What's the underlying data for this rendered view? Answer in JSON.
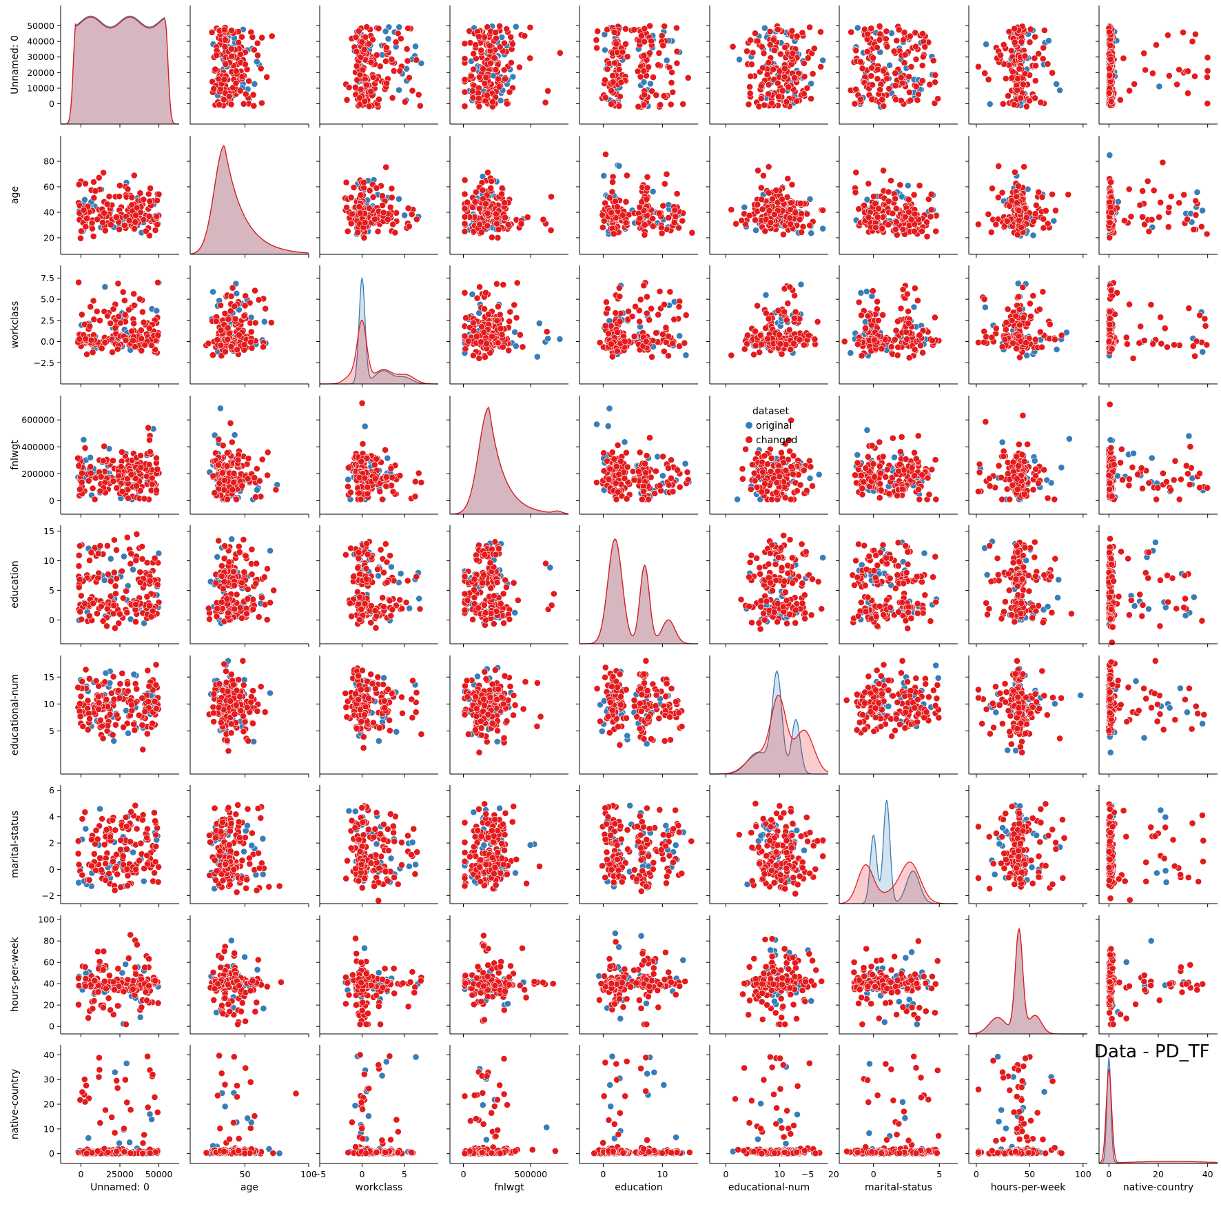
{
  "chart_data": {
    "type": "scatter",
    "variables": [
      "Unnamed: 0",
      "age",
      "workclass",
      "fnlwgt",
      "education",
      "educational-num",
      "marital-status",
      "hours-per-week",
      "native-country"
    ],
    "ranges": {
      "Unnamed: 0": [
        -13000,
        63000
      ],
      "age": [
        7,
        100
      ],
      "workclass": [
        -5,
        9
      ],
      "fnlwgt": [
        -100000,
        780000
      ],
      "education": [
        -4,
        16
      ],
      "educational-num": [
        -3,
        19
      ],
      "marital-status": [
        -2.6,
        6.4
      ],
      "hours-per-week": [
        -7,
        104
      ],
      "native-country": [
        -4,
        44
      ]
    },
    "ticks": {
      "Unnamed: 0": [
        0,
        25000,
        50000
      ],
      "age": [
        50,
        100
      ],
      "workclass": [
        -5,
        0,
        5
      ],
      "fnlwgt": [
        0,
        500000
      ],
      "education": [
        0,
        10
      ],
      "educational-num": [
        0,
        10,
        20
      ],
      "marital-status": [
        -5,
        0,
        5
      ],
      "hours-per-week": [
        0,
        50,
        100
      ],
      "native-country": [
        0,
        20,
        40
      ]
    },
    "y_ticks": {
      "Unnamed: 0": [
        0,
        10000,
        20000,
        30000,
        40000,
        50000
      ],
      "age": [
        20,
        40,
        60,
        80
      ],
      "workclass": [
        -2.5,
        0.0,
        2.5,
        5.0,
        7.5
      ],
      "fnlwgt": [
        0,
        200000,
        400000,
        600000
      ],
      "education": [
        0,
        5,
        10,
        15
      ],
      "educational-num": [
        5,
        10,
        15
      ],
      "marital-status": [
        -2,
        0,
        2,
        4,
        6
      ],
      "hours-per-week": [
        0,
        20,
        40,
        60,
        80,
        100
      ],
      "native-country": [
        0,
        10,
        20,
        30,
        40
      ]
    },
    "tick_labels": {
      "Unnamed: 0": [
        "0",
        "25000",
        "50000"
      ],
      "age": [
        "50",
        "100"
      ],
      "workclass": [
        "−5",
        "0",
        "5"
      ],
      "fnlwgt": [
        "0",
        "500000"
      ],
      "education": [
        "0",
        "10"
      ],
      "educational-num": [
        "0",
        "10",
        "20"
      ],
      "marital-status": [
        "−5",
        "0",
        "5"
      ],
      "hours-per-week": [
        "0",
        "50",
        "100"
      ],
      "native-country": [
        "0",
        "20",
        "40"
      ]
    },
    "y_tick_labels": {
      "Unnamed: 0": [
        "0",
        "10000",
        "20000",
        "30000",
        "40000",
        "50000"
      ],
      "age": [
        "20",
        "40",
        "60",
        "80"
      ],
      "workclass": [
        "−2.5",
        "0.0",
        "2.5",
        "5.0",
        "7.5"
      ],
      "fnlwgt": [
        "0",
        "200000",
        "400000",
        "600000"
      ],
      "education": [
        "0",
        "5",
        "10",
        "15"
      ],
      "educational-num": [
        "5",
        "10",
        "15"
      ],
      "marital-status": [
        "−2",
        "0",
        "2",
        "4",
        "6"
      ],
      "hours-per-week": [
        "0",
        "20",
        "40",
        "60",
        "80",
        "100"
      ],
      "native-country": [
        "0",
        "10",
        "20",
        "30",
        "40"
      ]
    },
    "series": [
      {
        "name": "original",
        "color": "#377eb8"
      },
      {
        "name": "changed",
        "color": "#e41a1c"
      }
    ],
    "legend": {
      "title": "dataset",
      "placement": "center"
    },
    "figure_title": "Data - PD_TF",
    "grid": false
  }
}
